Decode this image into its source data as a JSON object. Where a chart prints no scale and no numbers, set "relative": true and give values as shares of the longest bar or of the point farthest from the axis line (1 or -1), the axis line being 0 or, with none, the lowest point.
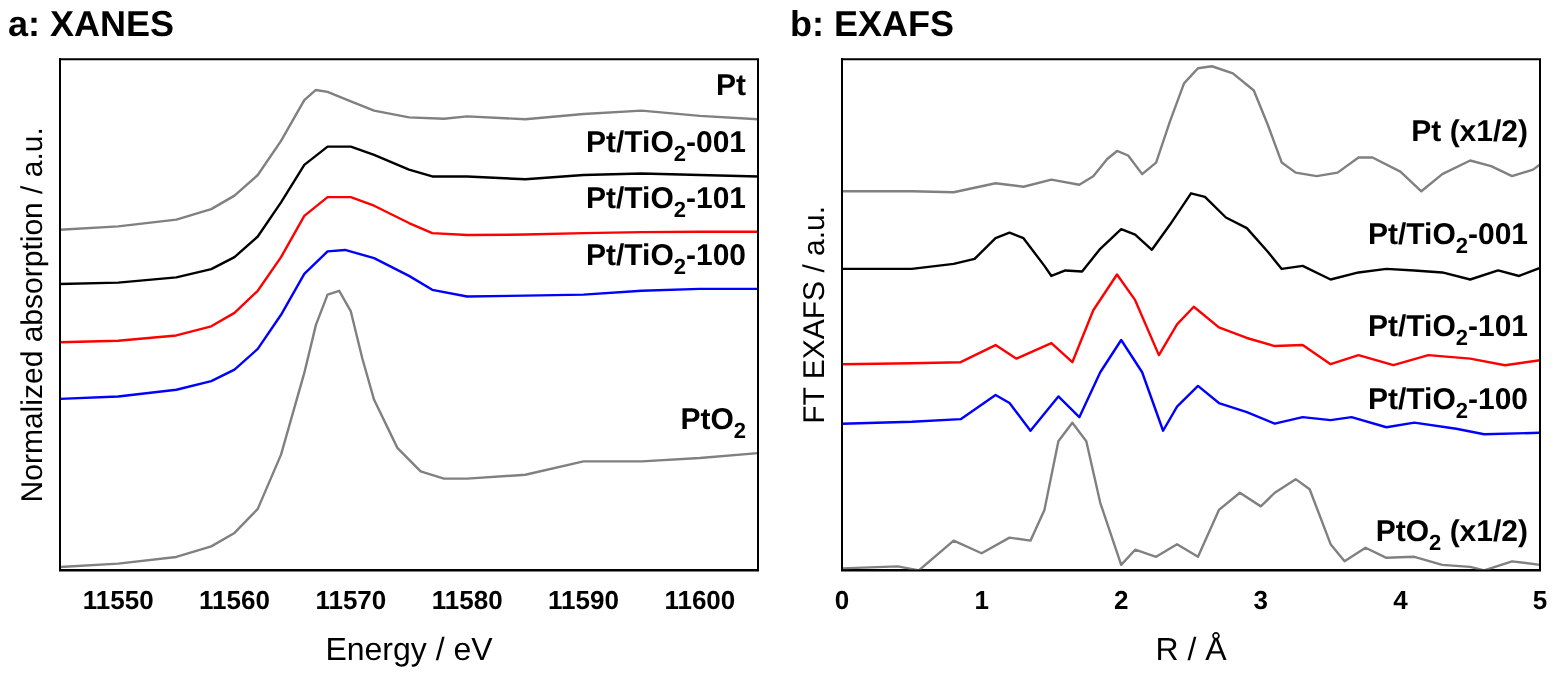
{
  "chart_data": [
    {
      "type": "line",
      "title": "a: XANES",
      "xlabel": "Energy / eV",
      "ylabel": "Normalized absorption / a.u.",
      "relative": true,
      "xlim": [
        11545,
        11605
      ],
      "xticks": [
        11550,
        11560,
        11570,
        11580,
        11590,
        11600
      ],
      "tick_labels": "x",
      "marker": "none",
      "series": [
        {
          "name": "Pt",
          "color": "#808080",
          "x": [
            11545,
            11550,
            11555,
            11558,
            11560,
            11562,
            11564,
            11566,
            11567,
            11568,
            11570,
            11572,
            11575,
            11578,
            11580,
            11585,
            11590,
            11595,
            11600,
            11605
          ],
          "values": [
            0.709,
            0.716,
            0.73,
            0.752,
            0.78,
            0.823,
            0.894,
            0.979,
            1.0,
            0.996,
            0.976,
            0.957,
            0.943,
            0.94,
            0.945,
            0.939,
            0.95,
            0.957,
            0.946,
            0.939
          ]
        },
        {
          "name": "Pt/TiO$_{2}$-001",
          "color": "#000000",
          "x": [
            11545,
            11550,
            11555,
            11558,
            11560,
            11562,
            11564,
            11566,
            11568,
            11570,
            11572,
            11575,
            11577,
            11580,
            11585,
            11590,
            11595,
            11600,
            11605
          ],
          "values": [
            0.596,
            0.599,
            0.61,
            0.627,
            0.652,
            0.695,
            0.766,
            0.844,
            0.882,
            0.882,
            0.865,
            0.834,
            0.82,
            0.82,
            0.814,
            0.823,
            0.826,
            0.823,
            0.82
          ]
        },
        {
          "name": "Pt/TiO$_{2}$-101",
          "color": "#ff0000",
          "x": [
            11545,
            11550,
            11555,
            11558,
            11560,
            11562,
            11564,
            11566,
            11568,
            11570,
            11572,
            11575,
            11577,
            11580,
            11585,
            11590,
            11595,
            11600,
            11605
          ],
          "values": [
            0.475,
            0.478,
            0.489,
            0.508,
            0.536,
            0.582,
            0.652,
            0.738,
            0.777,
            0.777,
            0.759,
            0.723,
            0.702,
            0.698,
            0.699,
            0.702,
            0.704,
            0.705,
            0.705
          ]
        },
        {
          "name": "Pt/TiO$_{2}$-100",
          "color": "#0000ff",
          "x": [
            11545,
            11550,
            11555,
            11558,
            11560,
            11562,
            11564,
            11566,
            11568,
            11569.5,
            11572,
            11575,
            11577,
            11580,
            11585,
            11590,
            11595,
            11600,
            11605
          ],
          "values": [
            0.357,
            0.362,
            0.376,
            0.394,
            0.418,
            0.461,
            0.532,
            0.617,
            0.664,
            0.667,
            0.65,
            0.613,
            0.584,
            0.57,
            0.572,
            0.574,
            0.582,
            0.586,
            0.586
          ]
        },
        {
          "name": "PtO$_{2}$",
          "color": "#808080",
          "x": [
            11545,
            11550,
            11555,
            11558,
            11560,
            11562,
            11564,
            11566,
            11567,
            11568,
            11569,
            11570,
            11571,
            11572,
            11574,
            11576,
            11578,
            11580,
            11585,
            11590,
            11595,
            11600,
            11605
          ],
          "values": [
            0.007,
            0.014,
            0.028,
            0.05,
            0.078,
            0.128,
            0.241,
            0.411,
            0.511,
            0.574,
            0.582,
            0.539,
            0.44,
            0.355,
            0.255,
            0.206,
            0.191,
            0.191,
            0.199,
            0.227,
            0.227,
            0.234,
            0.244
          ]
        }
      ]
    },
    {
      "type": "line",
      "title": "b: EXAFS",
      "xlabel": "R / Å",
      "ylabel": "FT EXAFS / a.u.",
      "relative": true,
      "xlim": [
        0,
        5
      ],
      "xticks": [
        0,
        1,
        2,
        3,
        4,
        5
      ],
      "tick_labels": "x",
      "marker": "none",
      "series": [
        {
          "name": "Pt (x1/2)",
          "color": "#808080",
          "x": [
            0,
            0.5,
            0.8,
            1.1,
            1.3,
            1.5,
            1.7,
            1.8,
            1.9,
            1.97,
            2.05,
            2.15,
            2.25,
            2.35,
            2.45,
            2.55,
            2.65,
            2.8,
            2.95,
            3.05,
            3.15,
            3.25,
            3.4,
            3.55,
            3.7,
            3.8,
            4.0,
            4.15,
            4.3,
            4.5,
            4.65,
            4.8,
            4.95,
            5
          ],
          "values": [
            0.752,
            0.752,
            0.75,
            0.768,
            0.761,
            0.775,
            0.765,
            0.782,
            0.816,
            0.832,
            0.823,
            0.786,
            0.809,
            0.891,
            0.966,
            0.996,
            1.0,
            0.986,
            0.952,
            0.884,
            0.809,
            0.789,
            0.782,
            0.789,
            0.819,
            0.819,
            0.791,
            0.752,
            0.786,
            0.813,
            0.802,
            0.782,
            0.795,
            0.805
          ]
        },
        {
          "name": "Pt/TiO$_{2}$-001",
          "color": "#000000",
          "x": [
            0,
            0.5,
            0.8,
            0.95,
            1.1,
            1.2,
            1.3,
            1.45,
            1.5,
            1.6,
            1.72,
            1.85,
            2.0,
            2.1,
            2.22,
            2.35,
            2.5,
            2.6,
            2.75,
            2.9,
            3.05,
            3.15,
            3.3,
            3.5,
            3.7,
            3.9,
            4.1,
            4.3,
            4.5,
            4.7,
            4.85,
            5
          ],
          "values": [
            0.598,
            0.598,
            0.608,
            0.618,
            0.659,
            0.67,
            0.659,
            0.604,
            0.584,
            0.595,
            0.593,
            0.638,
            0.677,
            0.666,
            0.636,
            0.686,
            0.748,
            0.741,
            0.7,
            0.679,
            0.632,
            0.598,
            0.604,
            0.577,
            0.591,
            0.598,
            0.595,
            0.591,
            0.577,
            0.595,
            0.584,
            0.6
          ]
        },
        {
          "name": "Pt/TiO$_{2}$-101",
          "color": "#ff0000",
          "x": [
            0,
            0.5,
            0.85,
            1.1,
            1.25,
            1.5,
            1.65,
            1.8,
            1.97,
            2.1,
            2.27,
            2.4,
            2.52,
            2.7,
            2.9,
            3.1,
            3.3,
            3.5,
            3.7,
            3.95,
            4.2,
            4.5,
            4.75,
            5
          ],
          "values": [
            0.409,
            0.411,
            0.413,
            0.447,
            0.42,
            0.451,
            0.413,
            0.516,
            0.587,
            0.536,
            0.427,
            0.488,
            0.523,
            0.482,
            0.461,
            0.445,
            0.447,
            0.409,
            0.427,
            0.407,
            0.427,
            0.42,
            0.407,
            0.417
          ]
        },
        {
          "name": "Pt/TiO$_{2}$-100",
          "color": "#0000ff",
          "x": [
            0,
            0.5,
            0.85,
            1.1,
            1.2,
            1.35,
            1.55,
            1.7,
            1.85,
            2.0,
            2.15,
            2.3,
            2.4,
            2.55,
            2.7,
            2.9,
            3.1,
            3.3,
            3.5,
            3.65,
            3.9,
            4.1,
            4.4,
            4.6,
            5
          ],
          "values": [
            0.291,
            0.295,
            0.3,
            0.348,
            0.332,
            0.277,
            0.345,
            0.304,
            0.393,
            0.457,
            0.393,
            0.277,
            0.325,
            0.366,
            0.332,
            0.314,
            0.291,
            0.304,
            0.298,
            0.304,
            0.284,
            0.293,
            0.281,
            0.27,
            0.273
          ]
        },
        {
          "name": "PtO$_{2}$ (x1/2)",
          "color": "#808080",
          "x": [
            0,
            0.4,
            0.55,
            0.8,
            1.0,
            1.2,
            1.35,
            1.45,
            1.55,
            1.65,
            1.75,
            1.85,
            2.0,
            2.1,
            2.25,
            2.4,
            2.55,
            2.7,
            2.85,
            3.0,
            3.1,
            3.25,
            3.35,
            3.5,
            3.6,
            3.75,
            3.9,
            4.1,
            4.3,
            4.5,
            4.6,
            4.8,
            5
          ],
          "values": [
            0.004,
            0.008,
            0.0,
            0.059,
            0.034,
            0.065,
            0.059,
            0.12,
            0.256,
            0.293,
            0.256,
            0.134,
            0.011,
            0.041,
            0.027,
            0.052,
            0.027,
            0.12,
            0.154,
            0.127,
            0.154,
            0.181,
            0.161,
            0.052,
            0.018,
            0.045,
            0.025,
            0.027,
            0.011,
            0.007,
            0.0,
            0.018,
            0.011
          ]
        }
      ]
    }
  ]
}
